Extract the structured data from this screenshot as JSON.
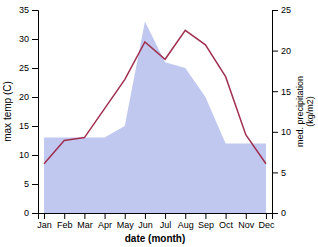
{
  "chart_data": {
    "type": "line",
    "categories": [
      "Jan",
      "Feb",
      "Mar",
      "Apr",
      "May",
      "Jun",
      "Jul",
      "Aug",
      "Sep",
      "Oct",
      "Nov",
      "Dec"
    ],
    "series": [
      {
        "type": "area",
        "color": "#c0c8f0",
        "values": [
          13,
          13,
          13,
          13,
          15,
          33,
          26,
          25,
          20,
          12,
          12,
          12
        ]
      },
      {
        "type": "line",
        "color": "#a03050",
        "values": [
          8.5,
          12.5,
          13.0,
          18.0,
          23.0,
          29.5,
          26.5,
          31.5,
          29.0,
          23.5,
          13.5,
          8.5
        ]
      }
    ],
    "ylim": [
      0,
      35
    ],
    "yticks": [
      0,
      5,
      10,
      15,
      20,
      25,
      30,
      35
    ],
    "y2lim": [
      0,
      25
    ],
    "y2ticks": [
      0,
      5,
      10,
      15,
      20,
      25
    ],
    "x_label": "date (month)",
    "y_label": "max temp (C)",
    "y2_label": "med. precipitation\n(kg/m2)",
    "grid": false
  }
}
